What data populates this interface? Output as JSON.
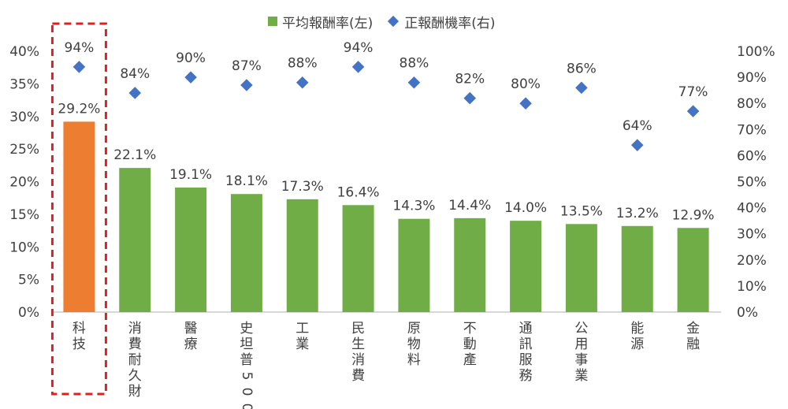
{
  "legend": {
    "bar_label": "平均報酬率(左)",
    "marker_label": "正報酬機率(右)"
  },
  "colors": {
    "bar": "#70ad47",
    "highlight_bar": "#ed7d31",
    "marker": "#4472c4",
    "highlight_box": "#e02020",
    "axis": "#bfbfbf"
  },
  "chart_data": {
    "type": "bar",
    "categories": [
      "科技",
      "消費耐久財",
      "醫療",
      "史坦普500",
      "工業",
      "民生消費",
      "原物料",
      "不動產",
      "通訊服務",
      "公用事業",
      "能源",
      "金融"
    ],
    "highlight_index": 0,
    "series": [
      {
        "name": "平均報酬率(左)",
        "axis": "left",
        "type": "bar",
        "values": [
          29.2,
          22.1,
          19.1,
          18.1,
          17.3,
          16.4,
          14.3,
          14.4,
          14.0,
          13.5,
          13.2,
          12.9
        ],
        "labels": [
          "29.2%",
          "22.1%",
          "19.1%",
          "18.1%",
          "17.3%",
          "16.4%",
          "14.3%",
          "14.4%",
          "14.0%",
          "13.5%",
          "13.2%",
          "12.9%"
        ]
      },
      {
        "name": "正報酬機率(右)",
        "axis": "right",
        "type": "scatter",
        "marker": "diamond",
        "values": [
          94,
          84,
          90,
          87,
          88,
          94,
          88,
          82,
          80,
          86,
          64,
          77
        ],
        "labels": [
          "94%",
          "84%",
          "90%",
          "87%",
          "88%",
          "94%",
          "88%",
          "82%",
          "80%",
          "86%",
          "64%",
          "77%"
        ]
      }
    ],
    "y_left": {
      "min": 0,
      "max": 40,
      "ticks": [
        "0%",
        "5%",
        "10%",
        "15%",
        "20%",
        "25%",
        "30%",
        "35%",
        "40%"
      ]
    },
    "y_right": {
      "min": 0,
      "max": 100,
      "ticks": [
        "0%",
        "10%",
        "20%",
        "30%",
        "40%",
        "50%",
        "60%",
        "70%",
        "80%",
        "90%",
        "100%"
      ]
    },
    "legend_position": "top-center",
    "grid": false
  }
}
